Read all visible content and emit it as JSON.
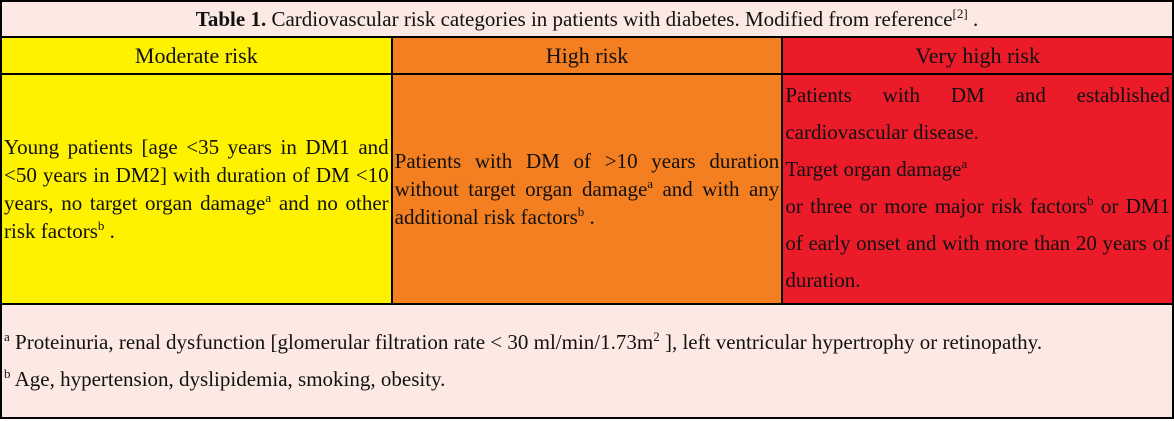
{
  "title": {
    "label": "Table 1.",
    "text": " Cardiovascular risk categories in patients with diabetes. Modified from reference",
    "ref": "[2]",
    "end": " ."
  },
  "colors": {
    "moderate": "#fff200",
    "high": "#f47f20",
    "very_high": "#ec1b2a",
    "background": "#fce9e3"
  },
  "headers": [
    "Moderate risk",
    "High risk",
    "Very high risk"
  ],
  "moderate": {
    "text1": "Young patients [age <35 years in DM1 and <50 years in DM2] with duration of DM <10 years, no target organ damage",
    "sup1": "a",
    "text2": " and no other risk factors",
    "sup2": "b",
    "text3": " ."
  },
  "high": {
    "text1": "Patients with DM of >10 years duration without target organ damage",
    "sup1": "a",
    "text2": " and with any additional risk factors",
    "sup2": "b",
    "text3": " ."
  },
  "very_high": {
    "line1": "Patients with DM and established cardiovascular disease.",
    "line2": "Target organ damage",
    "sup2": "a",
    "line3": "or three or more major risk factors",
    "sup3": "b",
    "line3b": "  or DM1 of early onset and with more than 20 years of duration."
  },
  "footnotes": {
    "a_mark": "a",
    "a_text1": " Proteinuria, renal dysfunction [glomerular filtration rate < 30 ml/min/1.73m",
    "a_sup": "2",
    "a_text2": " ], left ventricular hypertrophy or retinopathy.",
    "b_mark": "b",
    "b_text": " Age, hypertension, dyslipidemia, smoking, obesity."
  }
}
